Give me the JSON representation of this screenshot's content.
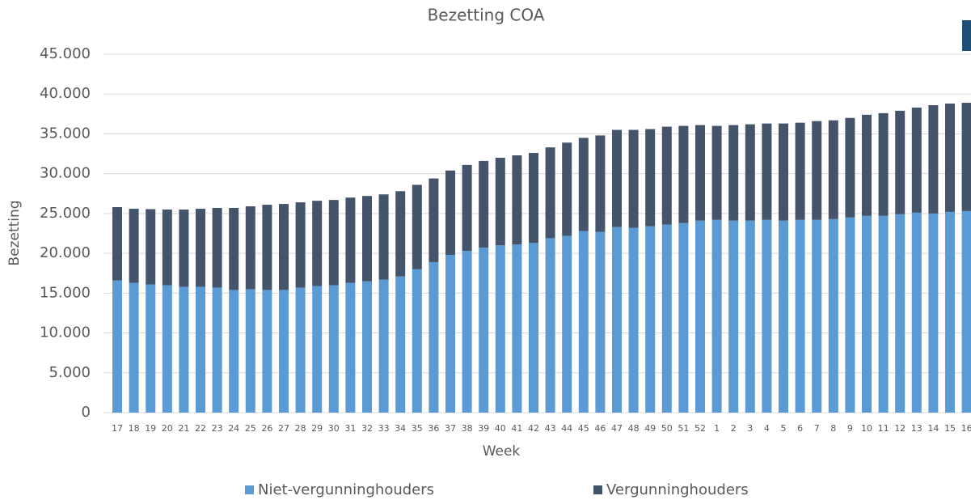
{
  "chart_data": {
    "type": "stacked_bar",
    "title": "Bezetting COA",
    "x_label": "Week",
    "y_label": "Bezetting",
    "categories": [
      "17",
      "18",
      "19",
      "20",
      "21",
      "22",
      "23",
      "24",
      "25",
      "26",
      "27",
      "28",
      "29",
      "30",
      "31",
      "32",
      "33",
      "34",
      "35",
      "36",
      "37",
      "38",
      "39",
      "40",
      "41",
      "42",
      "43",
      "44",
      "45",
      "46",
      "47",
      "48",
      "49",
      "50",
      "51",
      "52",
      "1",
      "2",
      "3",
      "4",
      "5",
      "6",
      "7",
      "8",
      "9",
      "10",
      "11",
      "12",
      "13",
      "14",
      "15",
      "16"
    ],
    "series": [
      {
        "name": "Niet-vergunninghouders",
        "color": "#5b9bd5",
        "values": [
          16600,
          16300,
          16100,
          16000,
          15800,
          15800,
          15700,
          15400,
          15500,
          15400,
          15400,
          15700,
          15900,
          16000,
          16300,
          16500,
          16700,
          17100,
          18000,
          18900,
          19800,
          20300,
          20700,
          21000,
          21100,
          21300,
          21900,
          22200,
          22800,
          22700,
          23300,
          23200,
          23400,
          23600,
          23800,
          24100,
          24200,
          24100,
          24100,
          24200,
          24100,
          24200,
          24200,
          24300,
          24500,
          24700,
          24700,
          24900,
          25100,
          25000,
          25200,
          25300
        ]
      },
      {
        "name": "Vergunninghouders",
        "color": "#44546a",
        "values": [
          9200,
          9300,
          9450,
          9500,
          9700,
          9800,
          10000,
          10300,
          10400,
          10700,
          10800,
          10700,
          10700,
          10700,
          10700,
          10700,
          10700,
          10700,
          10600,
          10500,
          10600,
          10800,
          10900,
          11000,
          11200,
          11300,
          11400,
          11700,
          11700,
          12100,
          12200,
          12300,
          12200,
          12300,
          12200,
          12000,
          11800,
          12000,
          12100,
          12100,
          12200,
          12200,
          12400,
          12400,
          12500,
          12700,
          12900,
          13000,
          13200,
          13600,
          13600,
          13600
        ]
      }
    ],
    "ylim": [
      0,
      45000
    ],
    "yticks": [
      0,
      {
        "value": 5000,
        "label": "5.000"
      },
      {
        "value": 10000,
        "label": "10.000"
      },
      {
        "value": 15000,
        "label": "15.000"
      },
      {
        "value": 20000,
        "label": "20.000"
      },
      {
        "value": 25000,
        "label": "25.000"
      },
      {
        "value": 30000,
        "label": "30.000"
      },
      {
        "value": 35000,
        "label": "35.000"
      },
      {
        "value": 40000,
        "label": "40.000"
      },
      {
        "value": 45000,
        "label": "45.000"
      }
    ],
    "grid": true,
    "legend": "bottom"
  }
}
